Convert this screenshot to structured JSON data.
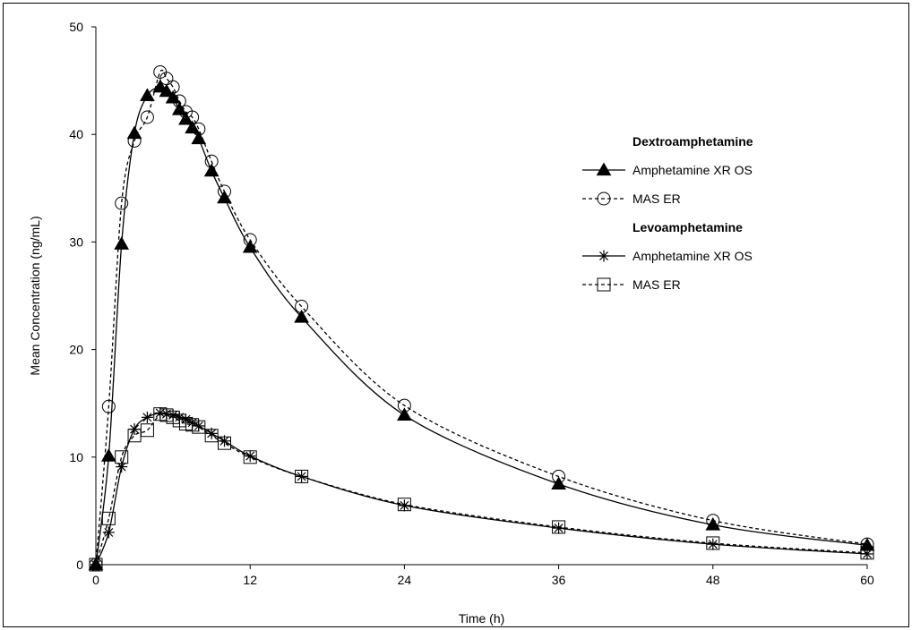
{
  "chart_data": {
    "type": "line",
    "title": "",
    "xlabel": "Time (h)",
    "ylabel": "Mean Concentration (ng/mL)",
    "xlim": [
      0,
      60
    ],
    "ylim": [
      0,
      50
    ],
    "x_ticks": [
      "0",
      "12",
      "24",
      "36",
      "48",
      "60"
    ],
    "y_ticks": [
      "0",
      "10",
      "20",
      "30",
      "40",
      "50"
    ],
    "grid": false,
    "legend_position": "right",
    "groups": [
      {
        "heading": "Dextroamphetamine",
        "series_indices": [
          0,
          1
        ]
      },
      {
        "heading": "Levoamphetamine",
        "series_indices": [
          2,
          3
        ]
      }
    ],
    "series": [
      {
        "name": "Amphetamine XR OS",
        "group": "Dextroamphetamine",
        "marker": "filled-triangle",
        "line_style": "solid",
        "x": [
          0,
          1,
          2,
          3,
          4,
          5,
          5.5,
          6,
          6.5,
          7,
          7.5,
          8,
          9,
          10,
          12,
          16,
          24,
          36,
          48,
          60
        ],
        "y": [
          0,
          10.1,
          29.8,
          40.1,
          43.6,
          44.4,
          44.0,
          43.4,
          42.3,
          41.4,
          40.6,
          39.6,
          36.6,
          34.1,
          29.5,
          23.0,
          13.9,
          7.5,
          3.7,
          1.8
        ]
      },
      {
        "name": "MAS ER",
        "group": "Dextroamphetamine",
        "marker": "open-circle",
        "line_style": "dashed",
        "x": [
          0,
          1,
          2,
          3,
          4,
          5,
          5.5,
          6,
          6.5,
          7,
          7.5,
          8,
          9,
          10,
          12,
          16,
          24,
          36,
          48,
          60
        ],
        "y": [
          0,
          14.7,
          33.6,
          39.4,
          41.6,
          45.8,
          45.2,
          44.4,
          43.1,
          42.1,
          41.6,
          40.5,
          37.5,
          34.7,
          30.2,
          24.0,
          14.8,
          8.2,
          4.1,
          1.9
        ]
      },
      {
        "name": "Amphetamine XR OS",
        "group": "Levoamphetamine",
        "marker": "asterisk",
        "line_style": "solid",
        "x": [
          0,
          1,
          2,
          3,
          4,
          5,
          5.5,
          6,
          6.5,
          7,
          7.5,
          8,
          9,
          10,
          12,
          16,
          24,
          36,
          48,
          60
        ],
        "y": [
          0,
          3.0,
          9.1,
          12.6,
          13.7,
          14.1,
          14.0,
          13.9,
          13.7,
          13.5,
          13.2,
          12.9,
          12.2,
          11.5,
          10.1,
          8.2,
          5.5,
          3.4,
          1.9,
          1.0
        ]
      },
      {
        "name": "MAS ER",
        "group": "Levoamphetamine",
        "marker": "open-square",
        "line_style": "dashed",
        "x": [
          0,
          1,
          2,
          3,
          4,
          5,
          5.5,
          6,
          6.5,
          7,
          7.5,
          8,
          9,
          10,
          12,
          16,
          24,
          36,
          48,
          60
        ],
        "y": [
          0,
          4.3,
          10.0,
          12.0,
          12.5,
          14.0,
          13.9,
          13.7,
          13.4,
          13.1,
          13.0,
          12.8,
          12.0,
          11.3,
          10.0,
          8.2,
          5.6,
          3.5,
          2.0,
          1.1
        ]
      }
    ]
  }
}
